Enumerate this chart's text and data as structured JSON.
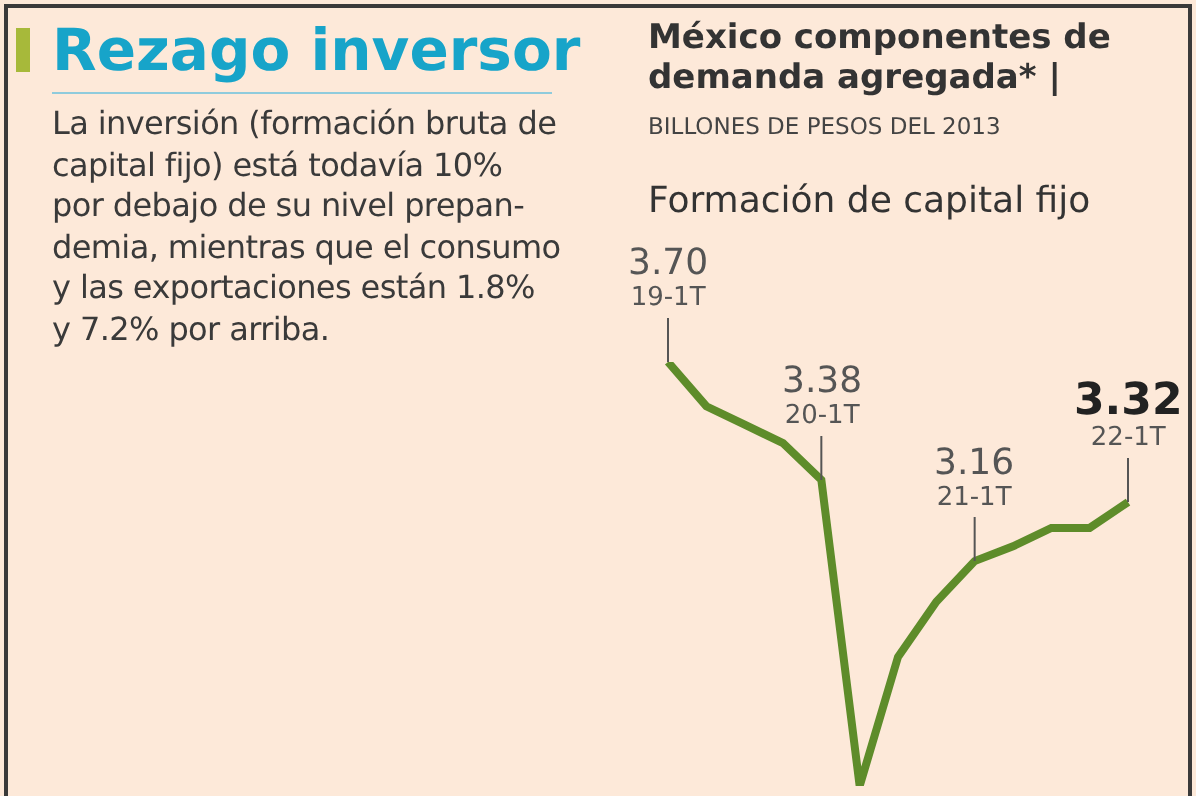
{
  "chart_data": {
    "type": "line",
    "title": "México componentes de demanda agregada* |",
    "subtitle": "BILLONES DE PESOS DEL 2013",
    "annotations": [
      "Rezago inversor",
      "La inversión (formación bruta de\ncapital fijo) está todavía 10%\npor debajo de su nivel prepan-\ndemia, mientras que el consumo\ny las exportaciones están 1.8%\ny 7.2% por arriba."
    ],
    "categories": [
      "19-1T",
      null,
      null,
      null,
      "20-1T",
      null,
      null,
      null,
      "21-1T",
      null,
      null,
      null,
      "22-1T"
    ],
    "series": [
      {
        "name": "Formación de capital fijo",
        "color": "#5e8c2a",
        "values": [
          3.7,
          3.58,
          3.53,
          3.48,
          3.38,
          2.55,
          2.9,
          3.05,
          3.16,
          3.2,
          3.25,
          3.25,
          3.32
        ],
        "value_labels": [
          "3.70",
          null,
          null,
          null,
          "3.38",
          null,
          null,
          null,
          "3.16",
          null,
          null,
          null,
          "3.32"
        ]
      }
    ],
    "tick_labels": false,
    "grid": false,
    "legend": false,
    "marker": "none",
    "line_style": "solid"
  }
}
